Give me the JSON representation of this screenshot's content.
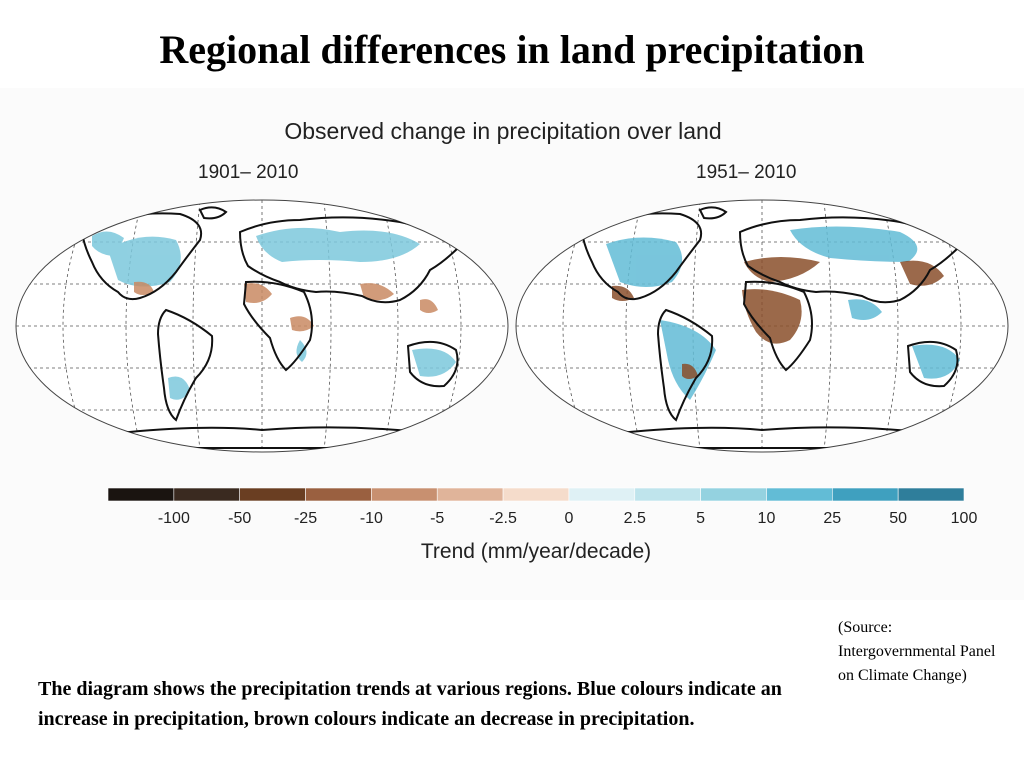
{
  "slide": {
    "title": "Regional differences in land precipitation"
  },
  "figure": {
    "title": "Observed change in precipitation over land",
    "panels": [
      {
        "period": "1901– 2010"
      },
      {
        "period": "1951– 2010"
      }
    ],
    "colorbar": {
      "title": "Trend (mm/year/decade)",
      "tick_labels": [
        "-100",
        "-50",
        "-25",
        "-10",
        "-5",
        "-2.5",
        "0",
        "2.5",
        "5",
        "10",
        "25",
        "50",
        "100"
      ],
      "colors": [
        "#1a1410",
        "#3a2a20",
        "#6a3e22",
        "#9a6040",
        "#c89070",
        "#e0b49a",
        "#f5dccb",
        "#dff1f5",
        "#bfe4ec",
        "#94d2e0",
        "#62bcd6",
        "#3fa0bf",
        "#2f7e9b"
      ]
    }
  },
  "legend_colors": {
    "increase": "#5db7d3",
    "decrease": "#8a4f2b",
    "coast": "#111111"
  },
  "source": "(Source: Intergovernmental Panel on Climate Change)",
  "caption": "The diagram shows the precipitation trends at various regions.  Blue colours indicate an increase in precipitation, brown colours indicate an decrease in precipitation."
}
